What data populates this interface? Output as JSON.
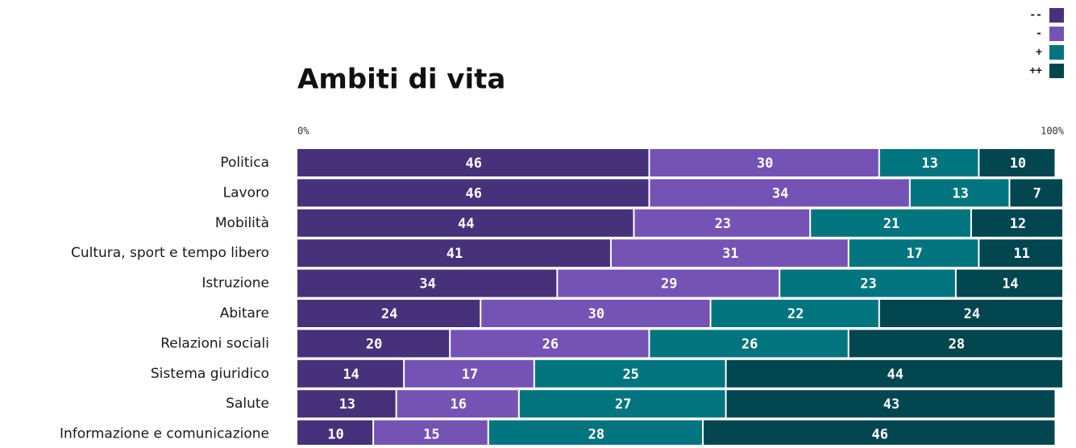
{
  "chart_data": {
    "type": "stacked-bar",
    "orientation": "horizontal",
    "title": "Ambiti di vita",
    "categories": [
      "Politica",
      "Lavoro",
      "Mobilità",
      "Cultura, sport e tempo libero",
      "Istruzione",
      "Abitare",
      "Relazioni sociali",
      "Sistema giuridico",
      "Salute",
      "Informazione e comunicazione"
    ],
    "series": [
      {
        "name": "--",
        "color": "#47317a",
        "values": [
          46,
          46,
          44,
          41,
          34,
          24,
          20,
          14,
          13,
          10
        ]
      },
      {
        "name": "-",
        "color": "#7553b5",
        "values": [
          30,
          34,
          23,
          31,
          29,
          30,
          26,
          17,
          16,
          15
        ]
      },
      {
        "name": "+",
        "color": "#00757f",
        "values": [
          13,
          13,
          21,
          17,
          23,
          22,
          26,
          25,
          27,
          28
        ]
      },
      {
        "name": "++",
        "color": "#02474f",
        "values": [
          10,
          7,
          12,
          11,
          14,
          24,
          28,
          44,
          43,
          46
        ]
      }
    ],
    "xlim": [
      0,
      100
    ],
    "xticks": [
      {
        "value": 0,
        "label": "0%"
      },
      {
        "value": 100,
        "label": "100%"
      }
    ],
    "legend": "top-right"
  }
}
